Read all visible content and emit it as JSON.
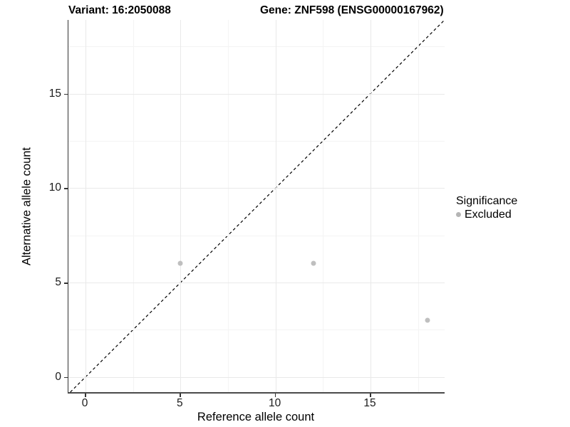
{
  "chart_data": {
    "type": "scatter",
    "title_left": "Variant: 16:2050088",
    "title_right": "Gene: ZNF598 (ENSG00000167962)",
    "xlabel": "Reference allele count",
    "ylabel": "Alternative allele count",
    "xlim": [
      -0.9,
      18.9
    ],
    "ylim": [
      -0.8,
      18.9
    ],
    "xticks": [
      0,
      5,
      10,
      15
    ],
    "yticks": [
      0,
      5,
      10,
      15
    ],
    "xticks_minor": [
      2.5,
      7.5,
      12.5,
      17.5
    ],
    "yticks_minor": [
      2.5,
      7.5,
      12.5,
      17.5
    ],
    "grid": true,
    "series": [
      {
        "name": "Excluded",
        "color": "#bfbfbf",
        "points": [
          {
            "x": 5,
            "y": 6
          },
          {
            "x": 12,
            "y": 6
          },
          {
            "x": 18,
            "y": 3
          }
        ]
      }
    ],
    "reference_line": {
      "kind": "identity",
      "equation": "y = x",
      "style": "dashed",
      "color": "#000000"
    },
    "legend": {
      "position": "right",
      "title": "Significance",
      "items": [
        {
          "label": "Excluded",
          "color": "#b5b5b5"
        }
      ]
    },
    "colors": {
      "grid_major": "#e9e9e9",
      "grid_minor": "#f4f4f4",
      "axis": "#333333"
    }
  }
}
